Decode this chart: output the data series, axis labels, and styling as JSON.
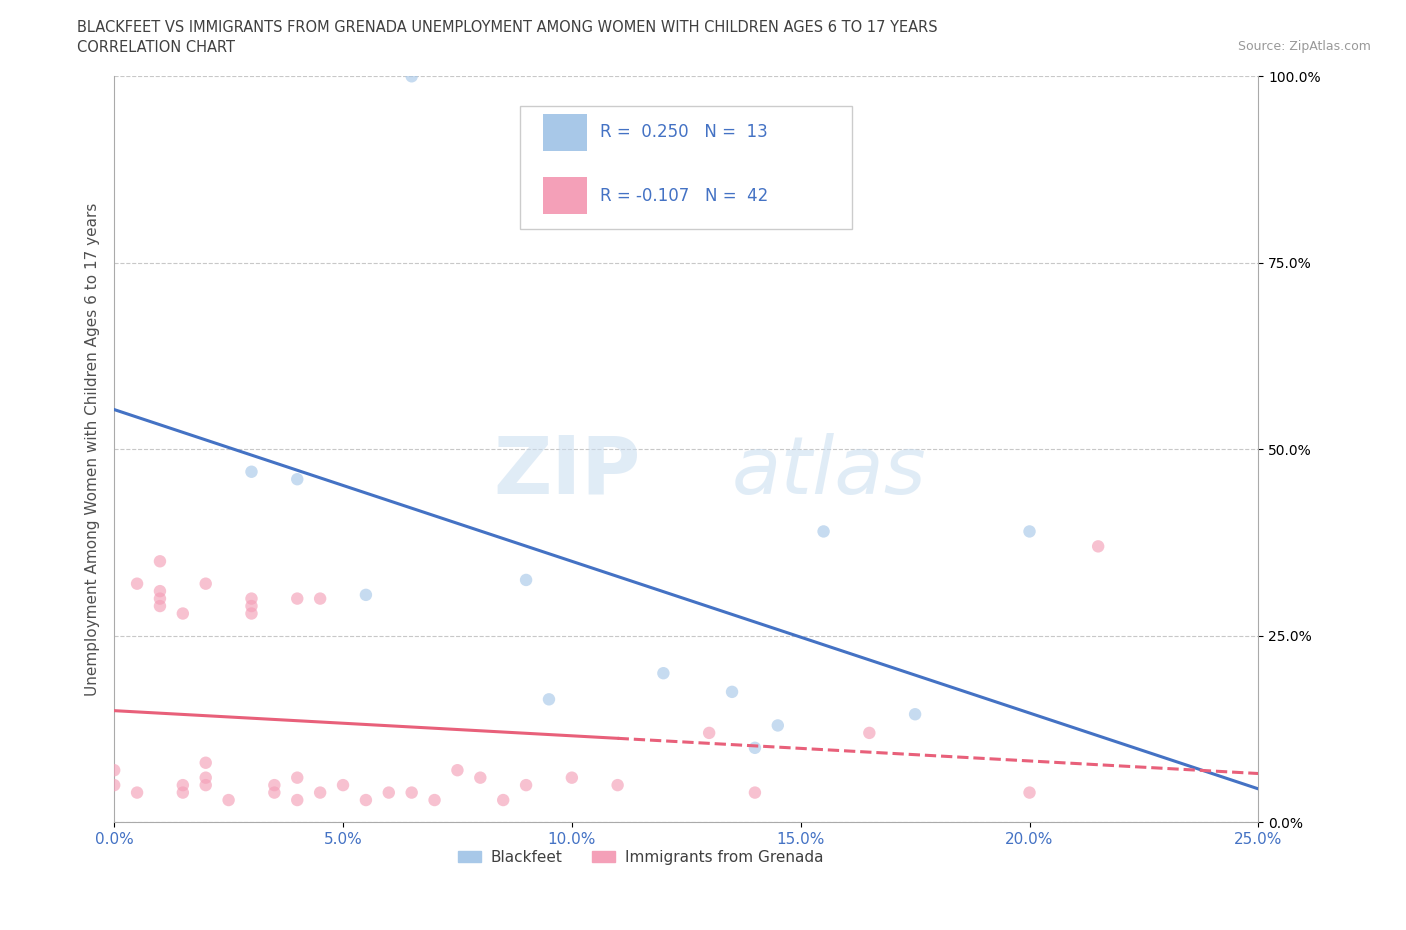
{
  "title_line1": "BLACKFEET VS IMMIGRANTS FROM GRENADA UNEMPLOYMENT AMONG WOMEN WITH CHILDREN AGES 6 TO 17 YEARS",
  "title_line2": "CORRELATION CHART",
  "source_text": "Source: ZipAtlas.com",
  "ylabel": "Unemployment Among Women with Children Ages 6 to 17 years",
  "xlim": [
    0.0,
    0.25
  ],
  "ylim": [
    0.0,
    1.0
  ],
  "x_ticks": [
    0.0,
    0.05,
    0.1,
    0.15,
    0.2,
    0.25
  ],
  "y_ticks": [
    0.0,
    0.25,
    0.5,
    0.75,
    1.0
  ],
  "watermark_zip": "ZIP",
  "watermark_atlas": "atlas",
  "blackfeet_scatter_x": [
    0.065,
    0.03,
    0.04,
    0.055,
    0.09,
    0.095,
    0.12,
    0.135,
    0.155,
    0.175,
    0.2,
    0.145,
    0.14
  ],
  "blackfeet_scatter_y": [
    1.0,
    0.47,
    0.46,
    0.305,
    0.325,
    0.165,
    0.2,
    0.175,
    0.39,
    0.145,
    0.39,
    0.13,
    0.1
  ],
  "grenada_scatter_x": [
    0.0,
    0.0,
    0.005,
    0.01,
    0.01,
    0.01,
    0.015,
    0.015,
    0.02,
    0.02,
    0.02,
    0.025,
    0.03,
    0.03,
    0.035,
    0.035,
    0.04,
    0.04,
    0.045,
    0.045,
    0.05,
    0.055,
    0.06,
    0.065,
    0.07,
    0.075,
    0.08,
    0.085,
    0.09,
    0.1,
    0.11,
    0.13,
    0.14,
    0.165,
    0.2,
    0.215,
    0.005,
    0.01,
    0.015,
    0.02,
    0.03,
    0.04
  ],
  "grenada_scatter_y": [
    0.05,
    0.07,
    0.04,
    0.29,
    0.3,
    0.31,
    0.04,
    0.05,
    0.05,
    0.06,
    0.08,
    0.03,
    0.28,
    0.3,
    0.04,
    0.05,
    0.03,
    0.06,
    0.04,
    0.3,
    0.05,
    0.03,
    0.04,
    0.04,
    0.03,
    0.07,
    0.06,
    0.03,
    0.05,
    0.06,
    0.05,
    0.12,
    0.04,
    0.12,
    0.04,
    0.37,
    0.32,
    0.35,
    0.28,
    0.32,
    0.29,
    0.3
  ],
  "blackfeet_color": "#a8c8e8",
  "grenada_color": "#f4a0b8",
  "blackfeet_line_color": "#4472c4",
  "grenada_line_color": "#e8607a",
  "blackfeet_R": 0.25,
  "blackfeet_N": 13,
  "grenada_R": -0.107,
  "grenada_N": 42,
  "legend_R_color": "#4472c4",
  "background_color": "#ffffff",
  "grid_color": "#c8c8c8",
  "title_color": "#404040",
  "axis_label_color": "#505050",
  "tick_label_color": "#4472c4",
  "scatter_size": 80,
  "scatter_alpha": 0.65,
  "line_width": 2.2
}
